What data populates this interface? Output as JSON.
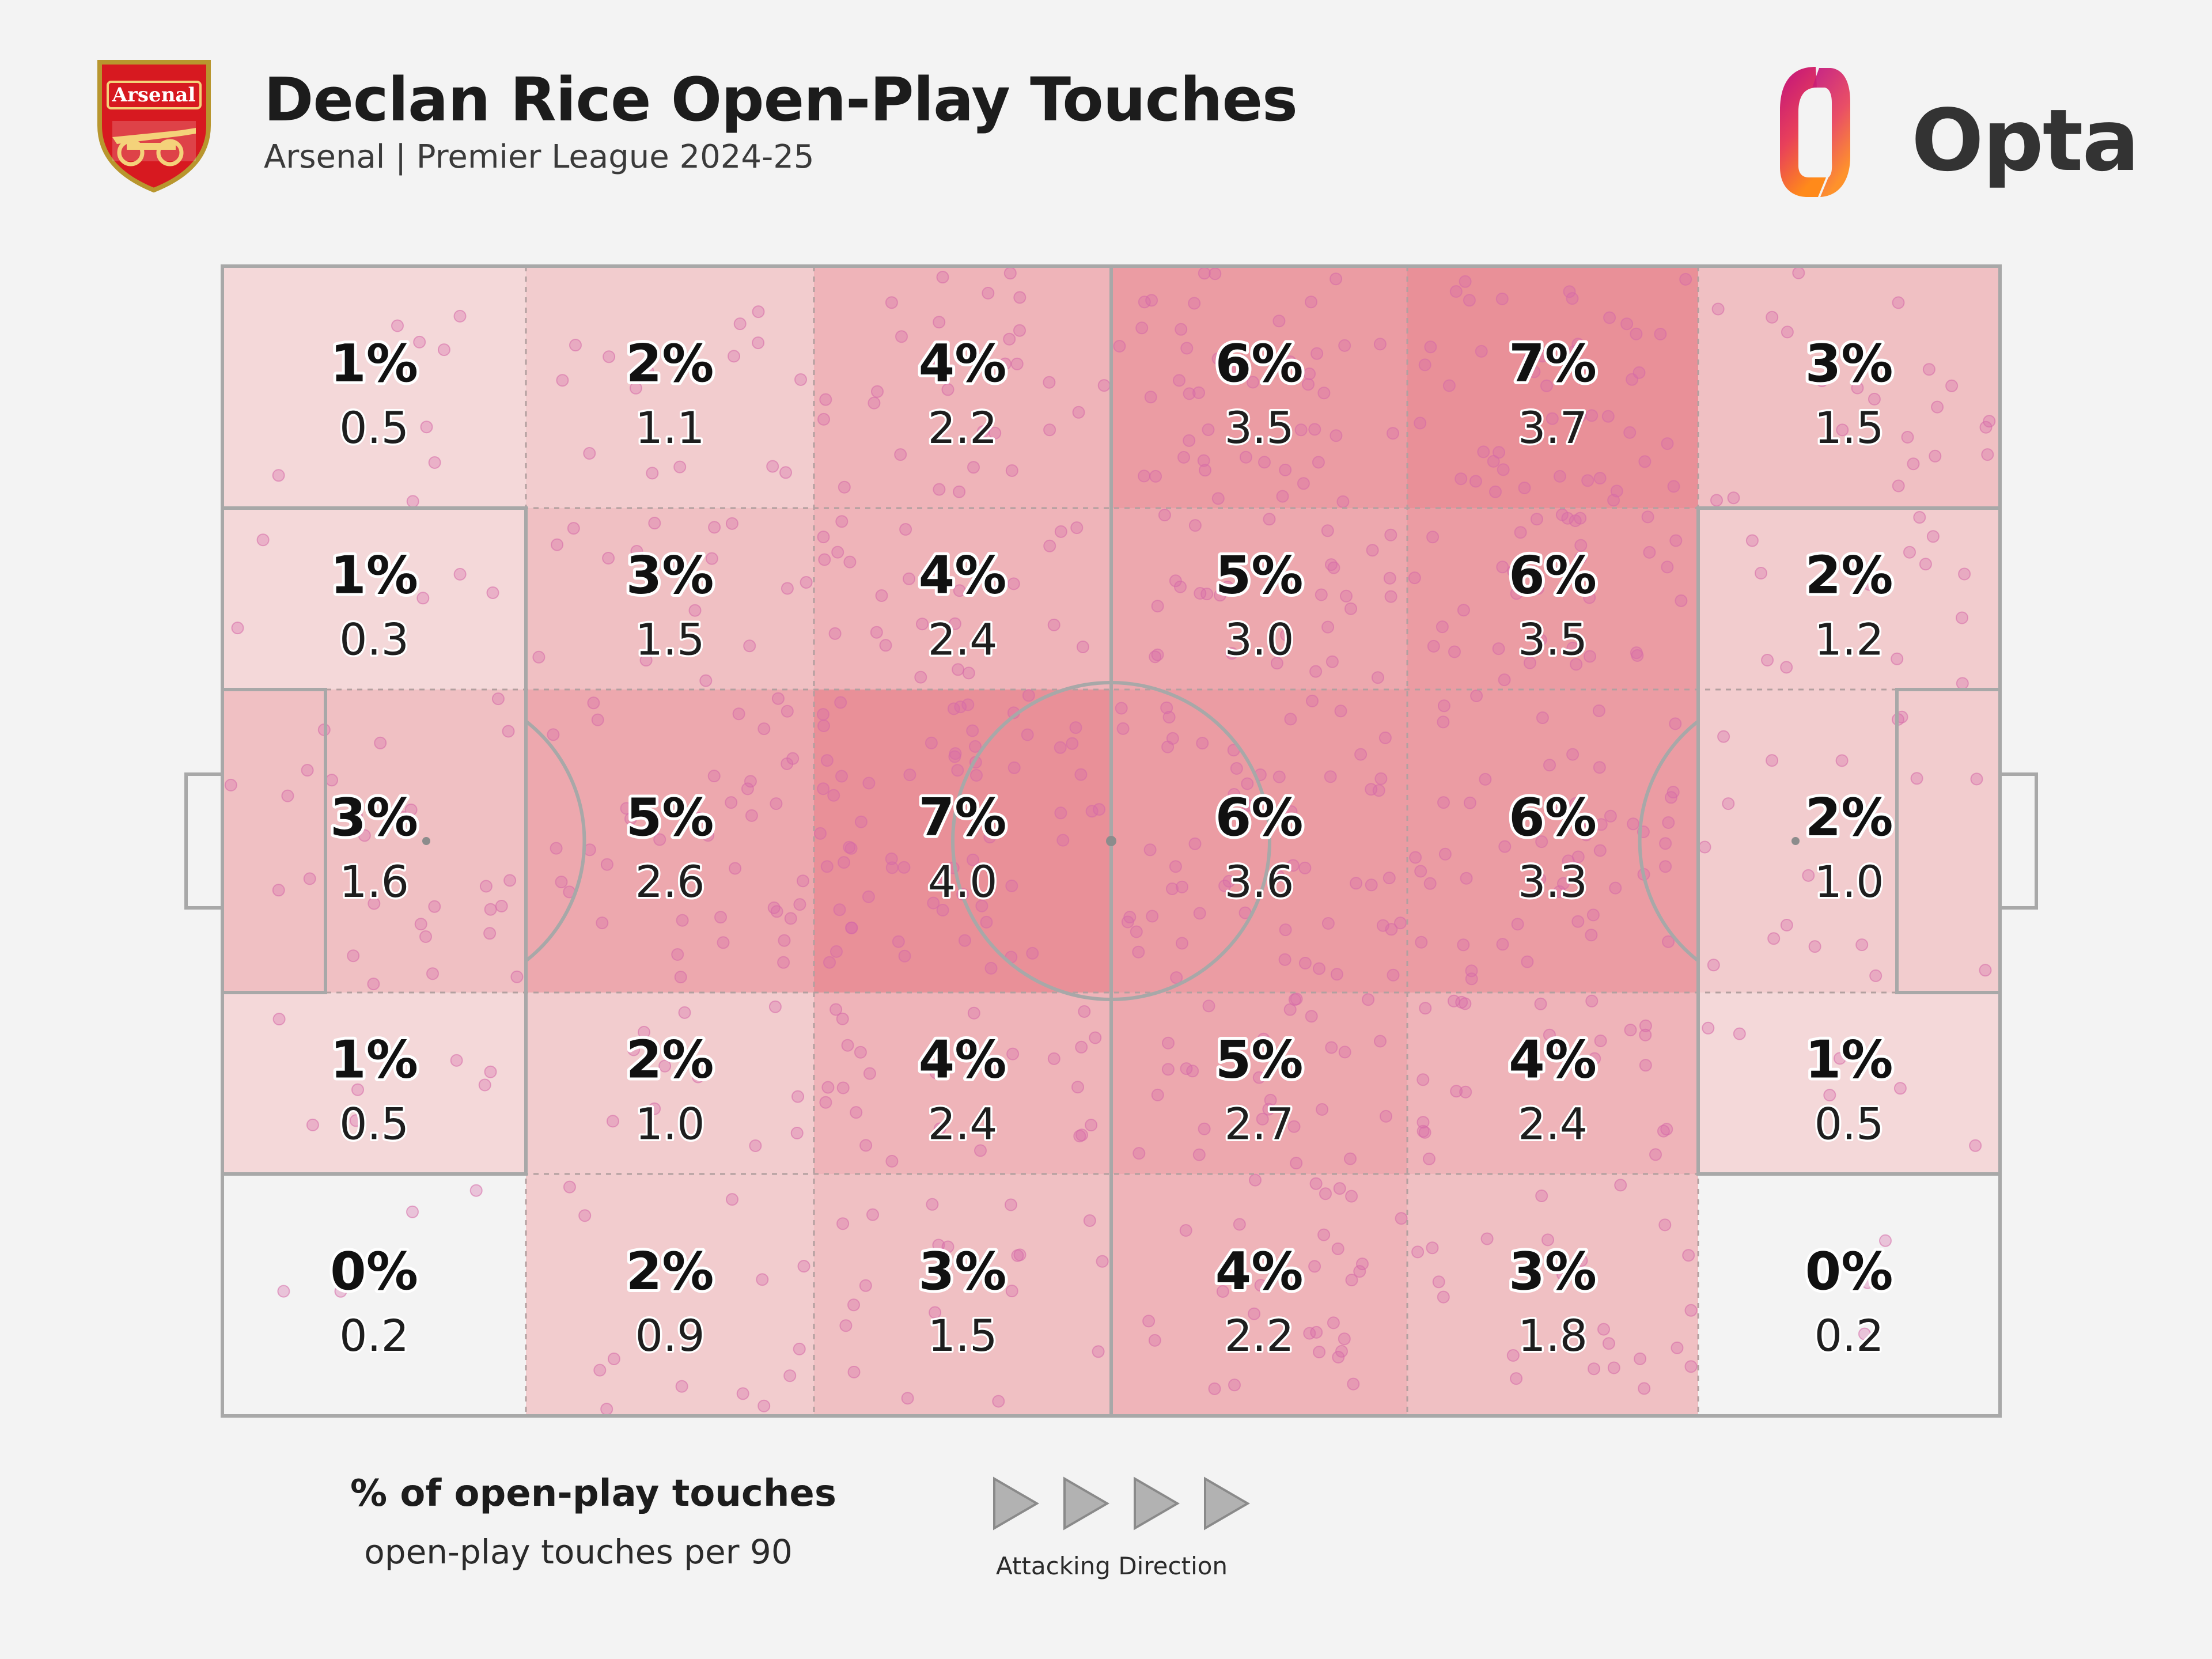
{
  "header": {
    "title": "Declan Rice Open-Play Touches",
    "subtitle": "Arsenal | Premier League 2024-25",
    "crest_text": "Arsenal",
    "brand": "Opta"
  },
  "colors": {
    "background": "#f3f3f3",
    "pitch_lines": "#a8a8a8",
    "touch_dot": "#d66aa8",
    "zone_scale_low": "#f6e4e4",
    "zone_scale_high": "#e99098",
    "opta_gradient": [
      "#c0127e",
      "#ff7a1a"
    ]
  },
  "chart_data": {
    "type": "heatmap",
    "title": "Declan Rice Open-Play Touches",
    "subtitle": "Arsenal | Premier League 2024-25",
    "metric_primary": "% of open-play touches",
    "metric_secondary": "open-play touches per 90",
    "attacking_direction": "left-to-right",
    "grid": {
      "rows": 5,
      "cols": 6
    },
    "zones": [
      [
        {
          "pct": "1%",
          "p90": "0.5"
        },
        {
          "pct": "2%",
          "p90": "1.1"
        },
        {
          "pct": "4%",
          "p90": "2.2"
        },
        {
          "pct": "6%",
          "p90": "3.5"
        },
        {
          "pct": "7%",
          "p90": "3.7"
        },
        {
          "pct": "3%",
          "p90": "1.5"
        }
      ],
      [
        {
          "pct": "1%",
          "p90": "0.3"
        },
        {
          "pct": "3%",
          "p90": "1.5"
        },
        {
          "pct": "4%",
          "p90": "2.4"
        },
        {
          "pct": "5%",
          "p90": "3.0"
        },
        {
          "pct": "6%",
          "p90": "3.5"
        },
        {
          "pct": "2%",
          "p90": "1.2"
        }
      ],
      [
        {
          "pct": "3%",
          "p90": "1.6"
        },
        {
          "pct": "5%",
          "p90": "2.6"
        },
        {
          "pct": "7%",
          "p90": "4.0"
        },
        {
          "pct": "6%",
          "p90": "3.6"
        },
        {
          "pct": "6%",
          "p90": "3.3"
        },
        {
          "pct": "2%",
          "p90": "1.0"
        }
      ],
      [
        {
          "pct": "1%",
          "p90": "0.5"
        },
        {
          "pct": "2%",
          "p90": "1.0"
        },
        {
          "pct": "4%",
          "p90": "2.4"
        },
        {
          "pct": "5%",
          "p90": "2.7"
        },
        {
          "pct": "4%",
          "p90": "2.4"
        },
        {
          "pct": "1%",
          "p90": "0.5"
        }
      ],
      [
        {
          "pct": "0%",
          "p90": "0.2"
        },
        {
          "pct": "2%",
          "p90": "0.9"
        },
        {
          "pct": "3%",
          "p90": "1.5"
        },
        {
          "pct": "4%",
          "p90": "2.2"
        },
        {
          "pct": "3%",
          "p90": "1.8"
        },
        {
          "pct": "0%",
          "p90": "0.2"
        }
      ]
    ]
  },
  "legend": {
    "title": "% of open-play touches",
    "subtitle": "open-play touches per 90"
  },
  "direction": {
    "label": "Attacking Direction",
    "arrow_icon": "play-arrow-icon",
    "arrow_count": 4
  }
}
